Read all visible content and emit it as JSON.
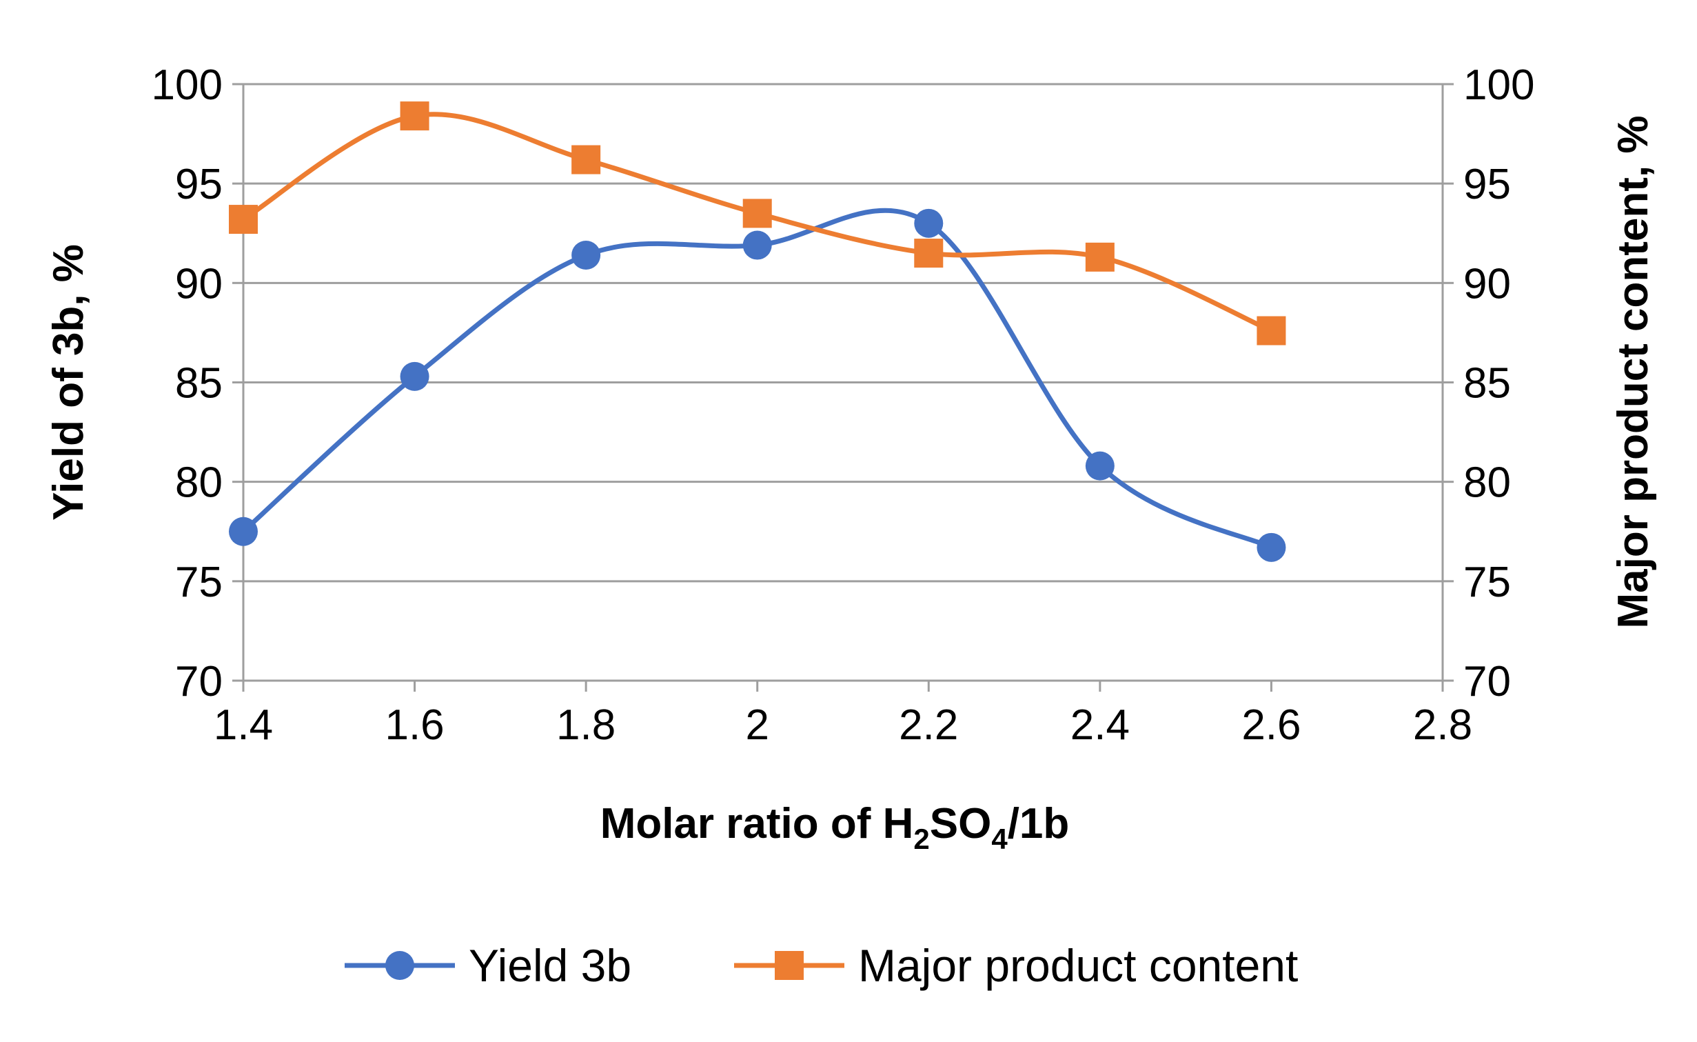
{
  "chart_data": {
    "type": "line",
    "smooth": true,
    "x_ticks": [
      1.4,
      1.6,
      1.8,
      2,
      2.2,
      2.4,
      2.6,
      2.8
    ],
    "x_tick_labels": [
      "1.4",
      "1.6",
      "1.8",
      "2",
      "2.2",
      "2.4",
      "2.6",
      "2.8"
    ],
    "xlim": [
      1.4,
      2.8
    ],
    "y_left": {
      "label": "Yield of 3b, %",
      "lim": [
        70,
        100
      ],
      "ticks": [
        70,
        75,
        80,
        85,
        90,
        95,
        100
      ],
      "tick_labels": [
        "70",
        "75",
        "80",
        "85",
        "90",
        "95",
        "100"
      ]
    },
    "y_right": {
      "label": "Major product content, %",
      "lim": [
        70,
        100
      ],
      "ticks": [
        70,
        75,
        80,
        85,
        90,
        95,
        100
      ],
      "tick_labels": [
        "70",
        "75",
        "80",
        "85",
        "90",
        "95",
        "100"
      ]
    },
    "xlabel": {
      "prefix": "Molar ratio of H",
      "sub1": "2",
      "middle": "SO",
      "sub2": "4",
      "suffix": "/1b"
    },
    "grid": "horizontal",
    "legend_position": "bottom-center",
    "series": [
      {
        "name": "Yield 3b",
        "axis": "left",
        "color": "#4472C4",
        "marker": "circle",
        "x": [
          1.4,
          1.6,
          1.8,
          2.0,
          2.2,
          2.4,
          2.6
        ],
        "y": [
          77.5,
          85.3,
          91.4,
          91.9,
          93.0,
          80.8,
          76.7
        ]
      },
      {
        "name": "Major product content",
        "axis": "right",
        "color": "#ED7D31",
        "marker": "square",
        "x": [
          1.4,
          1.6,
          1.8,
          2.0,
          2.2,
          2.4,
          2.6
        ],
        "y": [
          93.2,
          98.4,
          96.2,
          93.5,
          91.5,
          91.3,
          87.6
        ]
      }
    ]
  }
}
